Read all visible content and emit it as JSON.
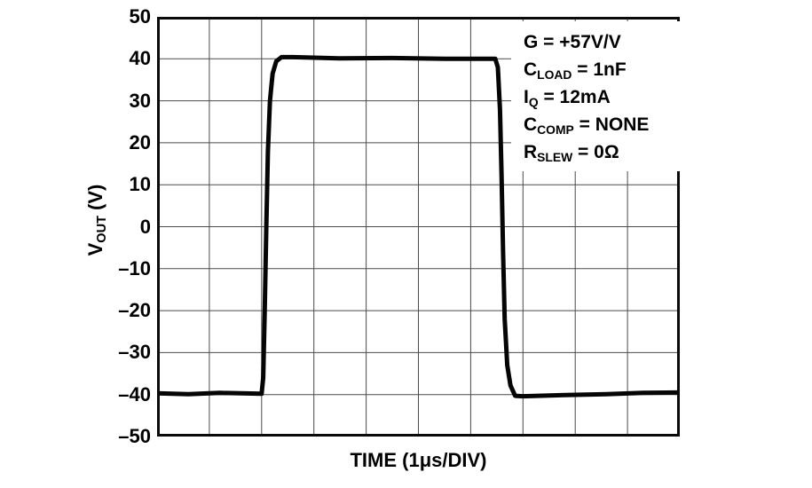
{
  "chart_data": {
    "type": "line",
    "title": "",
    "xlabel": "TIME (1μs/DIV)",
    "ylabel": "VOUT (V)",
    "ylabel_parts": {
      "main": "V",
      "sub": "OUT",
      "rest": " (V)"
    },
    "x_unit_per_div": "1μs",
    "xlim": [
      0,
      10
    ],
    "x_divisions": 10,
    "ylim": [
      -50,
      50
    ],
    "ytick_step": 10,
    "yticks": [
      50,
      40,
      30,
      20,
      10,
      0,
      -10,
      -20,
      -30,
      -40,
      -50
    ],
    "ytick_labels": [
      "50",
      "40",
      "30",
      "20",
      "10",
      "0",
      "–10",
      "–20",
      "–30",
      "–40",
      "–50"
    ],
    "grid": true,
    "legend_position": "top-right-inside",
    "series": [
      {
        "points": [
          [
            0,
            -39.7
          ],
          [
            0.6,
            -39.9
          ],
          [
            1.2,
            -39.6
          ],
          [
            2.0,
            -39.8
          ],
          [
            2.03,
            -36
          ],
          [
            2.06,
            -20
          ],
          [
            2.09,
            0
          ],
          [
            2.12,
            18
          ],
          [
            2.16,
            30
          ],
          [
            2.21,
            36.5
          ],
          [
            2.28,
            39.4
          ],
          [
            2.38,
            40.4
          ],
          [
            2.6,
            40.4
          ],
          [
            3.5,
            40.1
          ],
          [
            4.5,
            40.2
          ],
          [
            5.5,
            40.0
          ],
          [
            6.47,
            40.0
          ],
          [
            6.52,
            38
          ],
          [
            6.56,
            28
          ],
          [
            6.59,
            12
          ],
          [
            6.62,
            -6
          ],
          [
            6.65,
            -22
          ],
          [
            6.7,
            -33
          ],
          [
            6.76,
            -37.8
          ],
          [
            6.85,
            -40.3
          ],
          [
            7.0,
            -40.4
          ],
          [
            7.8,
            -40.1
          ],
          [
            8.6,
            -39.9
          ],
          [
            9.3,
            -39.6
          ],
          [
            10,
            -39.5
          ]
        ]
      }
    ],
    "annotations": [
      {
        "label": "G = +57V/V",
        "main": "G",
        "sub": "",
        "rest": " = +57V/V"
      },
      {
        "label": "CLOAD = 1nF",
        "main": "C",
        "sub": "LOAD",
        "rest": " = 1nF"
      },
      {
        "label": "IQ = 12mA",
        "main": "I",
        "sub": "Q",
        "rest": " = 12mA"
      },
      {
        "label": "CCOMP = NONE",
        "main": "C",
        "sub": "COMP",
        "rest": " = NONE"
      },
      {
        "label": "RSLEW = 0Ω",
        "main": "R",
        "sub": "SLEW",
        "rest": " = 0Ω"
      }
    ]
  },
  "colors": {
    "trace": "#050505",
    "grid": "#4a4a4a",
    "border": "#0a0a0a",
    "background": "#ffffff",
    "text": "#000000"
  }
}
